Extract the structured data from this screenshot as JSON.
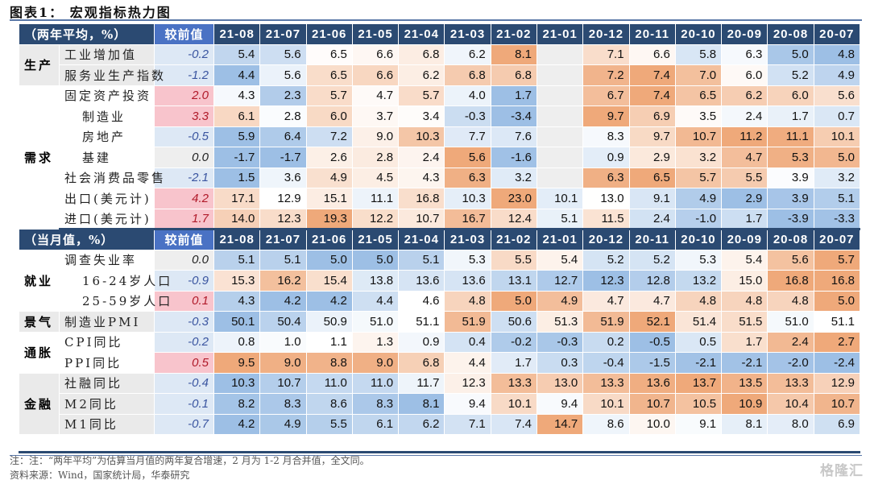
{
  "title": "图表1： 宏观指标热力图",
  "months": [
    "21-08",
    "21-07",
    "21-06",
    "21-05",
    "21-04",
    "21-03",
    "21-02",
    "21-01",
    "20-12",
    "20-11",
    "20-10",
    "20-09",
    "20-08",
    "20-07"
  ],
  "change_header": "较前值",
  "sections": [
    {
      "header": "（两年平均，%）",
      "groups": [
        {
          "category": "生产",
          "rows": [
            {
              "label": "工业增加值",
              "change": "-0.2",
              "values": [
                "5.4",
                "5.6",
                "6.5",
                "6.6",
                "6.8",
                "6.2",
                "8.1",
                "",
                "7.1",
                "6.6",
                "5.8",
                "6.3",
                "5.0",
                "4.8"
              ]
            },
            {
              "label": "服务业生产指数",
              "change": "-1.2",
              "values": [
                "4.4",
                "5.6",
                "6.5",
                "6.6",
                "6.2",
                "6.8",
                "6.8",
                "",
                "7.2",
                "7.4",
                "7.0",
                "6.0",
                "5.2",
                "4.9"
              ]
            }
          ]
        },
        {
          "category": "需求",
          "rows": [
            {
              "label": "固定资产投资",
              "change": "2.0",
              "values": [
                "4.3",
                "2.3",
                "5.7",
                "4.7",
                "5.7",
                "4.0",
                "1.7",
                "",
                "6.7",
                "7.4",
                "6.5",
                "6.2",
                "6.0",
                "5.6"
              ]
            },
            {
              "label": "制造业",
              "change": "3.3",
              "values": [
                "6.1",
                "2.8",
                "6.0",
                "3.7",
                "3.4",
                "-0.3",
                "-3.4",
                "",
                "9.7",
                "6.9",
                "3.5",
                "2.4",
                "1.7",
                "0.7"
              ]
            },
            {
              "label": "房地产",
              "change": "-0.5",
              "values": [
                "5.9",
                "6.4",
                "7.2",
                "9.0",
                "10.3",
                "7.7",
                "7.6",
                "",
                "8.3",
                "9.7",
                "10.7",
                "11.2",
                "11.1",
                "10.1"
              ]
            },
            {
              "label": "基建",
              "change": "0.0",
              "values": [
                "-1.7",
                "-1.7",
                "2.6",
                "2.8",
                "2.4",
                "5.6",
                "-1.6",
                "",
                "0.9",
                "2.9",
                "3.2",
                "4.7",
                "5.3",
                "5.0"
              ]
            },
            {
              "label": "社会消费品零售",
              "change": "-2.1",
              "values": [
                "1.5",
                "3.6",
                "4.9",
                "4.5",
                "4.3",
                "6.3",
                "3.2",
                "",
                "6.3",
                "6.5",
                "5.7",
                "5.5",
                "3.9",
                "3.2"
              ]
            },
            {
              "label": "出口(美元计)",
              "change": "4.2",
              "values": [
                "17.1",
                "12.9",
                "15.1",
                "11.1",
                "16.8",
                "10.3",
                "23.0",
                "10.1",
                "13.0",
                "9.1",
                "4.9",
                "2.9",
                "3.9",
                "5.1"
              ]
            },
            {
              "label": "进口(美元计)",
              "change": "1.7",
              "values": [
                "14.0",
                "12.3",
                "19.3",
                "12.2",
                "10.7",
                "16.7",
                "12.4",
                "5.1",
                "11.5",
                "2.4",
                "-1.0",
                "1.7",
                "-3.9",
                "-3.3"
              ]
            }
          ]
        }
      ]
    },
    {
      "header": "（当月值，%）",
      "groups": [
        {
          "category": "就业",
          "rows": [
            {
              "label": "调查失业率",
              "change": "0.0",
              "values": [
                "5.1",
                "5.1",
                "5.0",
                "5.0",
                "5.1",
                "5.3",
                "5.5",
                "5.4",
                "5.2",
                "5.2",
                "5.3",
                "5.4",
                "5.6",
                "5.7"
              ]
            },
            {
              "label": "16-24岁人口",
              "change": "-0.9",
              "values": [
                "15.3",
                "16.2",
                "15.4",
                "13.8",
                "13.6",
                "13.6",
                "13.1",
                "12.7",
                "12.3",
                "12.8",
                "13.2",
                "15.0",
                "16.8",
                "16.8"
              ]
            },
            {
              "label": "25-59岁人口",
              "change": "0.1",
              "values": [
                "4.3",
                "4.2",
                "4.2",
                "4.4",
                "4.6",
                "4.8",
                "5.0",
                "4.9",
                "4.7",
                "4.7",
                "4.8",
                "4.8",
                "4.8",
                "5.0"
              ]
            }
          ]
        },
        {
          "category": "景气",
          "rows": [
            {
              "label": "制造业PMI",
              "change": "-0.3",
              "values": [
                "50.1",
                "50.4",
                "50.9",
                "51.0",
                "51.1",
                "51.9",
                "50.6",
                "51.3",
                "51.9",
                "52.1",
                "51.4",
                "51.5",
                "51.0",
                "51.1"
              ]
            }
          ]
        },
        {
          "category": "通胀",
          "rows": [
            {
              "label": "CPI同比",
              "change": "-0.2",
              "values": [
                "0.8",
                "1.0",
                "1.1",
                "1.3",
                "0.9",
                "0.4",
                "-0.2",
                "-0.3",
                "0.2",
                "-0.5",
                "0.5",
                "1.7",
                "2.4",
                "2.7"
              ]
            },
            {
              "label": "PPI同比",
              "change": "0.5",
              "values": [
                "9.5",
                "9.0",
                "8.8",
                "9.0",
                "6.8",
                "4.4",
                "1.7",
                "0.3",
                "-0.4",
                "-1.5",
                "-2.1",
                "-2.1",
                "-2.0",
                "-2.4"
              ]
            }
          ]
        },
        {
          "category": "金融",
          "rows": [
            {
              "label": "社融同比",
              "change": "-0.4",
              "values": [
                "10.3",
                "10.7",
                "11.0",
                "11.0",
                "11.7",
                "12.3",
                "13.3",
                "13.0",
                "13.3",
                "13.6",
                "13.7",
                "13.5",
                "13.3",
                "12.9"
              ]
            },
            {
              "label": "M2同比",
              "change": "-0.1",
              "values": [
                "8.2",
                "8.3",
                "8.6",
                "8.3",
                "8.1",
                "9.4",
                "10.1",
                "9.4",
                "10.1",
                "10.7",
                "10.5",
                "10.9",
                "10.4",
                "10.7"
              ]
            },
            {
              "label": "M1同比",
              "change": "-0.7",
              "values": [
                "4.2",
                "4.9",
                "5.5",
                "6.1",
                "6.2",
                "7.1",
                "7.4",
                "14.7",
                "8.6",
                "10.0",
                "9.1",
                "8.1",
                "8.0",
                "6.9"
              ]
            }
          ]
        }
      ]
    }
  ],
  "colors": {
    "header_bg": "#2b4a72",
    "change_header_bg": "#4a72c4",
    "positive_change_bg": "#f8c4cc",
    "positive_change_text": "#b01a2a",
    "negative_change_bg": "#dde8f5",
    "negative_change_text": "#3a55a0",
    "zero_change_bg": "#eeeeee",
    "heat_low": "#9dbfe5",
    "heat_mid": "#ffffff",
    "heat_high": "#efa97a",
    "empty_cell": "#eeeeee"
  },
  "note": "注：注：“两年平均”为估算当月值的两年复合增速，2 月为 1-2 月合并值，全文同。",
  "source": "资料来源：Wind，国家统计局，华泰研究",
  "watermark": "格隆汇"
}
